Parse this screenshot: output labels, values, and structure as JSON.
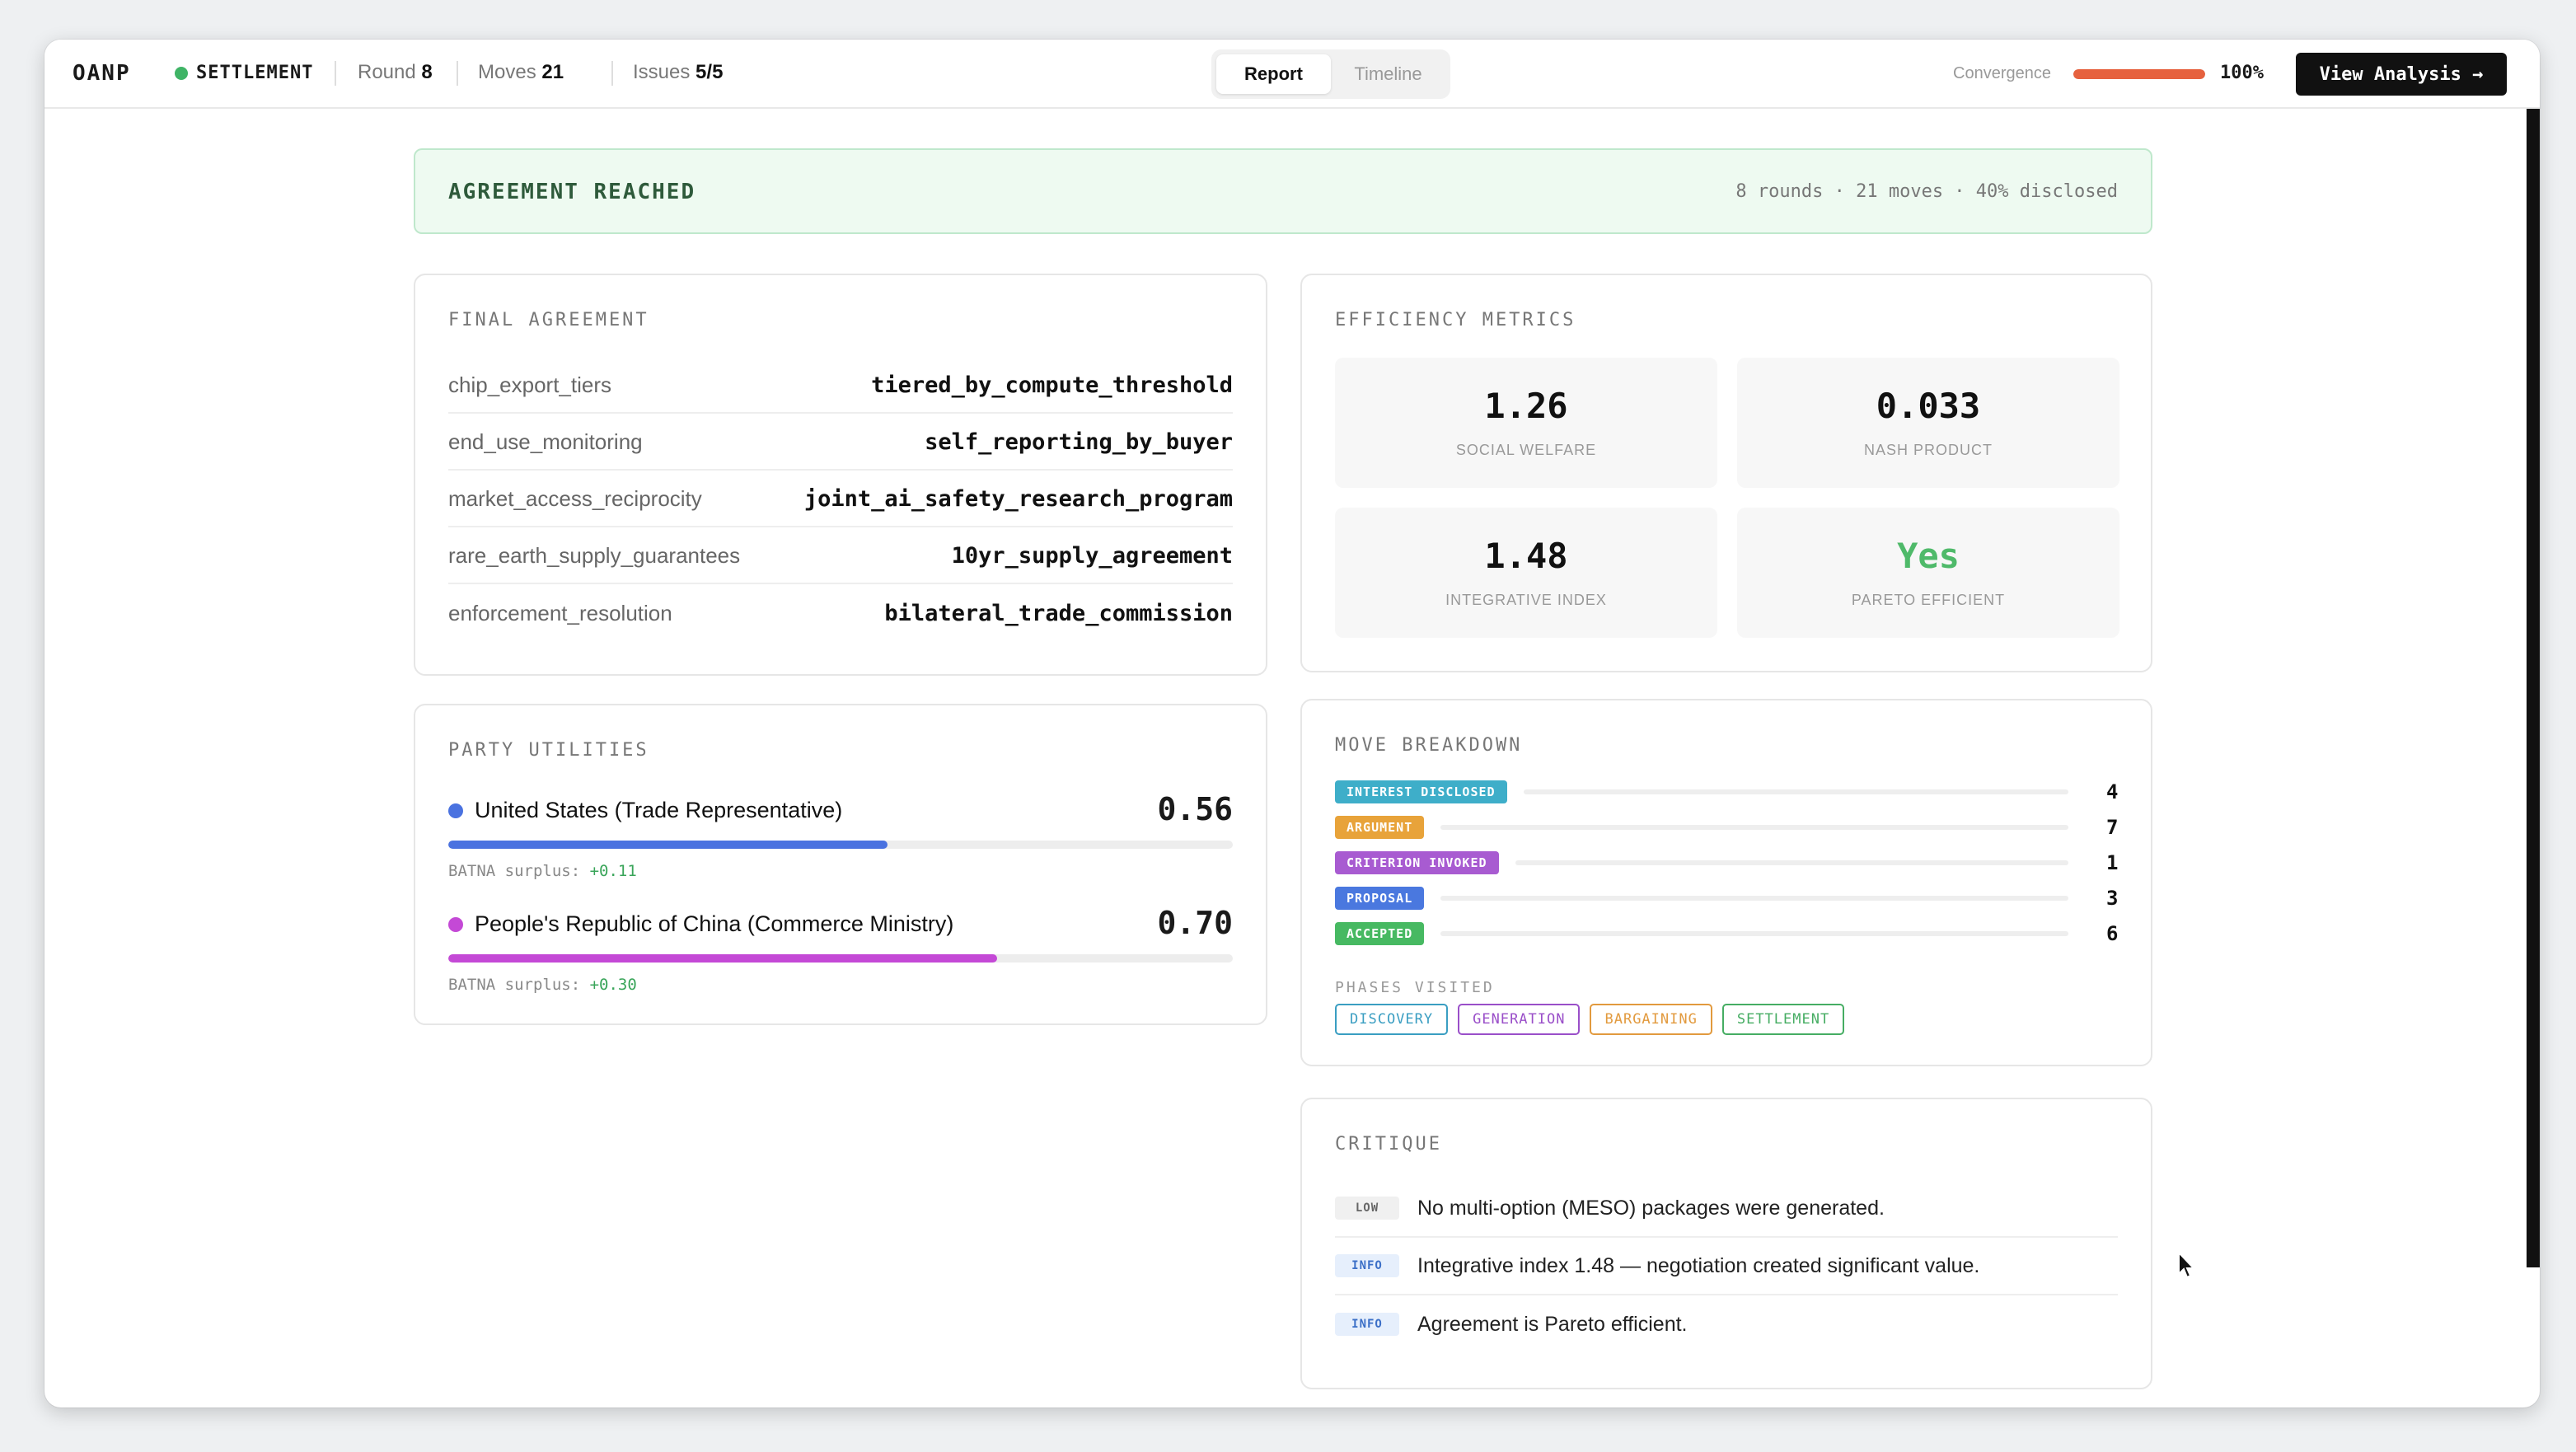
{
  "topbar": {
    "brand": "OANP",
    "status": "SETTLEMENT",
    "status_color": "#3fb466",
    "round_label": "Round",
    "round_value": "8",
    "moves_label": "Moves",
    "moves_value": "21",
    "issues_label": "Issues",
    "issues_value": "5/5",
    "tabs": [
      {
        "label": "Report",
        "active": true
      },
      {
        "label": "Timeline",
        "active": false
      }
    ],
    "convergence_label": "Convergence",
    "convergence_value": "100%",
    "convergence_fraction": 1.0,
    "convergence_color": "#e6613e",
    "view_analysis_label": "View Analysis →"
  },
  "banner": {
    "title": "AGREEMENT REACHED",
    "meta": "8 rounds · 21 moves · 40% disclosed"
  },
  "final_agreement": {
    "title": "FINAL AGREEMENT",
    "rows": [
      {
        "key": "chip_export_tiers",
        "value": "tiered_by_compute_threshold"
      },
      {
        "key": "end_use_monitoring",
        "value": "self_reporting_by_buyer"
      },
      {
        "key": "market_access_reciprocity",
        "value": "joint_ai_safety_research_program"
      },
      {
        "key": "rare_earth_supply_guarantees",
        "value": "10yr_supply_agreement"
      },
      {
        "key": "enforcement_resolution",
        "value": "bilateral_trade_commission"
      }
    ]
  },
  "efficiency": {
    "title": "EFFICIENCY METRICS",
    "metrics": [
      {
        "value": "1.26",
        "label": "SOCIAL WELFARE"
      },
      {
        "value": "0.033",
        "label": "NASH PRODUCT"
      },
      {
        "value": "1.48",
        "label": "INTEGRATIVE INDEX"
      },
      {
        "value": "Yes",
        "label": "PARETO EFFICIENT"
      }
    ]
  },
  "party_utilities": {
    "title": "PARTY UTILITIES",
    "batna_label": "BATNA surplus:",
    "parties": [
      {
        "name": "United States (Trade Representative)",
        "value": "0.56",
        "fraction": 0.56,
        "color": "#4a72e0",
        "surplus": "+0.11"
      },
      {
        "name": "People's Republic of China (Commerce Ministry)",
        "value": "0.70",
        "fraction": 0.7,
        "color": "#c449d6",
        "surplus": "+0.30"
      }
    ]
  },
  "move_breakdown": {
    "title": "MOVE BREAKDOWN",
    "moves": [
      {
        "label": "INTEREST DISCLOSED",
        "count": "4",
        "color": "#3eaec9"
      },
      {
        "label": "ARGUMENT",
        "count": "7",
        "color": "#e8a33a"
      },
      {
        "label": "CRITERION INVOKED",
        "count": "1",
        "color": "#a85bd1"
      },
      {
        "label": "PROPOSAL",
        "count": "3",
        "color": "#4a78df"
      },
      {
        "label": "ACCEPTED",
        "count": "6",
        "color": "#47b962"
      }
    ],
    "phases_label": "PHASES VISITED",
    "phases": [
      {
        "label": "DISCOVERY",
        "color": "#3a9ec2"
      },
      {
        "label": "GENERATION",
        "color": "#9a4fc9"
      },
      {
        "label": "BARGAINING",
        "color": "#e29a3e"
      },
      {
        "label": "SETTLEMENT",
        "color": "#46ad63"
      }
    ]
  },
  "critique": {
    "title": "CRITIQUE",
    "items": [
      {
        "level": "LOW",
        "text": "No multi-option (MESO) packages were generated."
      },
      {
        "level": "INFO",
        "text": "Integrative index 1.48 — negotiation created significant value."
      },
      {
        "level": "INFO",
        "text": "Agreement is Pareto efficient."
      }
    ]
  }
}
